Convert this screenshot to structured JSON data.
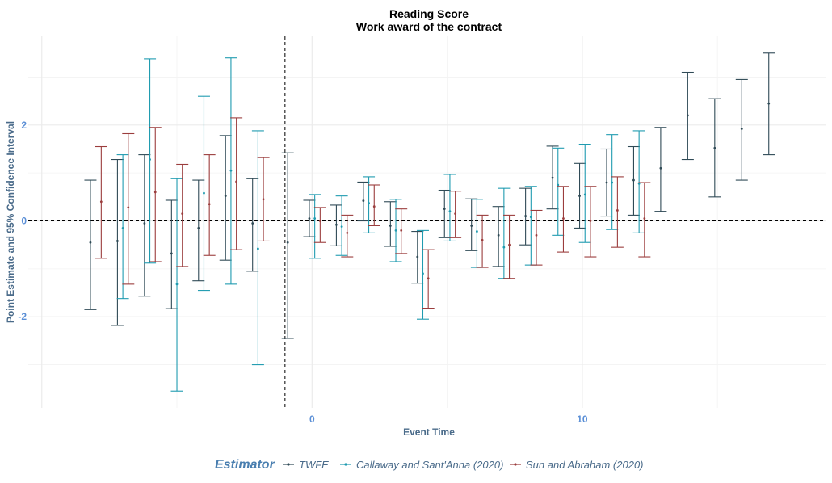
{
  "chart_data": {
    "type": "errorbar",
    "title": "Reading Score",
    "subtitle": "Work award of the contract",
    "xlabel": "Event Time",
    "ylabel": "Point Estimate and 95% Confidence Interval",
    "xlim": [
      -10.5,
      19
    ],
    "ylim": [
      -3.9,
      3.85
    ],
    "x_ticks": [
      0,
      10
    ],
    "y_ticks": [
      -2,
      0,
      2
    ],
    "reference_lines": {
      "x": -1,
      "y": 0
    },
    "legend": {
      "title": "Estimator",
      "position": "bottom"
    },
    "colors": {
      "TWFE": "#2f4a56",
      "Callaway": "#1f9bb0",
      "SunAbraham": "#9b3d3d"
    },
    "series": [
      {
        "name": "TWFE",
        "color": "#2f4a56",
        "points": [
          {
            "x": -8.2,
            "est": -0.45,
            "lo": -1.85,
            "hi": 0.85
          },
          {
            "x": -7.2,
            "est": -0.42,
            "lo": -2.18,
            "hi": 1.28
          },
          {
            "x": -6.2,
            "est": -0.05,
            "lo": -1.57,
            "hi": 1.38
          },
          {
            "x": -5.2,
            "est": -0.68,
            "lo": -1.83,
            "hi": 0.43
          },
          {
            "x": -4.2,
            "est": -0.15,
            "lo": -1.25,
            "hi": 0.85
          },
          {
            "x": -3.2,
            "est": 0.52,
            "lo": -0.82,
            "hi": 1.78
          },
          {
            "x": -2.2,
            "est": -0.05,
            "lo": -1.05,
            "hi": 0.88
          },
          {
            "x": -0.9,
            "est": -0.45,
            "lo": -2.45,
            "hi": 1.42
          },
          {
            "x": -0.1,
            "est": 0.05,
            "lo": -0.33,
            "hi": 0.43
          },
          {
            "x": 0.9,
            "est": -0.08,
            "lo": -0.52,
            "hi": 0.33
          },
          {
            "x": 1.9,
            "est": 0.42,
            "lo": 0.0,
            "hi": 0.81
          },
          {
            "x": 2.9,
            "est": -0.1,
            "lo": -0.53,
            "hi": 0.4
          },
          {
            "x": 3.9,
            "est": -0.75,
            "lo": -1.3,
            "hi": -0.22
          },
          {
            "x": 4.9,
            "est": 0.25,
            "lo": -0.35,
            "hi": 0.64
          },
          {
            "x": 5.9,
            "est": -0.1,
            "lo": -0.62,
            "hi": 0.46
          },
          {
            "x": 6.9,
            "est": -0.3,
            "lo": -0.95,
            "hi": 0.3
          },
          {
            "x": 7.9,
            "est": 0.1,
            "lo": -0.5,
            "hi": 0.68
          },
          {
            "x": 8.9,
            "est": 0.9,
            "lo": 0.25,
            "hi": 1.56
          },
          {
            "x": 9.9,
            "est": 0.52,
            "lo": -0.15,
            "hi": 1.2
          },
          {
            "x": 10.9,
            "est": 0.8,
            "lo": 0.1,
            "hi": 1.5
          },
          {
            "x": 11.9,
            "est": 0.85,
            "lo": 0.12,
            "hi": 1.55
          },
          {
            "x": 12.9,
            "est": 1.1,
            "lo": 0.2,
            "hi": 1.95
          },
          {
            "x": 13.9,
            "est": 2.2,
            "lo": 1.28,
            "hi": 3.1
          },
          {
            "x": 14.9,
            "est": 1.52,
            "lo": 0.5,
            "hi": 2.55
          },
          {
            "x": 15.9,
            "est": 1.92,
            "lo": 0.85,
            "hi": 2.95
          },
          {
            "x": 16.9,
            "est": 2.45,
            "lo": 1.38,
            "hi": 3.5
          }
        ]
      },
      {
        "name": "Callaway and Sant'Anna (2020)",
        "color": "#1f9bb0",
        "points": [
          {
            "x": -7.0,
            "est": -0.15,
            "lo": -1.62,
            "hi": 1.38
          },
          {
            "x": -6.0,
            "est": 1.28,
            "lo": -0.88,
            "hi": 3.38
          },
          {
            "x": -5.0,
            "est": -1.32,
            "lo": -3.55,
            "hi": 0.88
          },
          {
            "x": -4.0,
            "est": 0.58,
            "lo": -1.45,
            "hi": 2.6
          },
          {
            "x": -3.0,
            "est": 1.05,
            "lo": -1.32,
            "hi": 3.4
          },
          {
            "x": -2.0,
            "est": -0.58,
            "lo": -3.0,
            "hi": 1.88
          },
          {
            "x": 0.1,
            "est": 0.05,
            "lo": -0.78,
            "hi": 0.55
          },
          {
            "x": 1.1,
            "est": -0.12,
            "lo": -0.72,
            "hi": 0.52
          },
          {
            "x": 2.1,
            "est": 0.37,
            "lo": -0.25,
            "hi": 0.92
          },
          {
            "x": 3.1,
            "est": -0.2,
            "lo": -0.85,
            "hi": 0.45
          },
          {
            "x": 4.1,
            "est": -1.1,
            "lo": -2.05,
            "hi": -0.2
          },
          {
            "x": 5.1,
            "est": 0.2,
            "lo": -0.42,
            "hi": 0.97
          },
          {
            "x": 6.1,
            "est": -0.22,
            "lo": -0.97,
            "hi": 0.45
          },
          {
            "x": 7.1,
            "est": -0.55,
            "lo": -1.2,
            "hi": 0.68
          },
          {
            "x": 8.1,
            "est": 0.08,
            "lo": -0.92,
            "hi": 0.72
          },
          {
            "x": 9.1,
            "est": 0.75,
            "lo": -0.3,
            "hi": 1.52
          },
          {
            "x": 10.1,
            "est": 0.55,
            "lo": -0.45,
            "hi": 1.6
          },
          {
            "x": 11.1,
            "est": 0.8,
            "lo": -0.18,
            "hi": 1.8
          },
          {
            "x": 12.1,
            "est": 0.78,
            "lo": -0.25,
            "hi": 1.88
          }
        ]
      },
      {
        "name": "Sun and Abraham (2020)",
        "color": "#9b3d3d",
        "points": [
          {
            "x": -7.8,
            "est": 0.4,
            "lo": -0.78,
            "hi": 1.55
          },
          {
            "x": -6.8,
            "est": 0.28,
            "lo": -1.32,
            "hi": 1.82
          },
          {
            "x": -5.8,
            "est": 0.6,
            "lo": -0.85,
            "hi": 1.95
          },
          {
            "x": -4.8,
            "est": 0.15,
            "lo": -0.95,
            "hi": 1.18
          },
          {
            "x": -3.8,
            "est": 0.35,
            "lo": -0.72,
            "hi": 1.38
          },
          {
            "x": -2.8,
            "est": 0.82,
            "lo": -0.6,
            "hi": 2.15
          },
          {
            "x": -1.8,
            "est": 0.45,
            "lo": -0.42,
            "hi": 1.32
          },
          {
            "x": 0.3,
            "est": 0.0,
            "lo": -0.45,
            "hi": 0.28
          },
          {
            "x": 1.3,
            "est": -0.25,
            "lo": -0.75,
            "hi": 0.12
          },
          {
            "x": 2.3,
            "est": 0.3,
            "lo": -0.1,
            "hi": 0.75
          },
          {
            "x": 3.3,
            "est": -0.2,
            "lo": -0.68,
            "hi": 0.25
          },
          {
            "x": 4.3,
            "est": -1.2,
            "lo": -1.82,
            "hi": -0.6
          },
          {
            "x": 5.3,
            "est": 0.15,
            "lo": -0.35,
            "hi": 0.62
          },
          {
            "x": 6.3,
            "est": -0.4,
            "lo": -0.97,
            "hi": 0.12
          },
          {
            "x": 7.3,
            "est": -0.5,
            "lo": -1.2,
            "hi": 0.12
          },
          {
            "x": 8.3,
            "est": -0.3,
            "lo": -0.92,
            "hi": 0.22
          },
          {
            "x": 9.3,
            "est": 0.05,
            "lo": -0.65,
            "hi": 0.72
          },
          {
            "x": 10.3,
            "est": 0.0,
            "lo": -0.75,
            "hi": 0.72
          },
          {
            "x": 11.3,
            "est": 0.22,
            "lo": -0.55,
            "hi": 0.92
          },
          {
            "x": 12.3,
            "est": 0.05,
            "lo": -0.75,
            "hi": 0.8
          }
        ]
      }
    ]
  }
}
